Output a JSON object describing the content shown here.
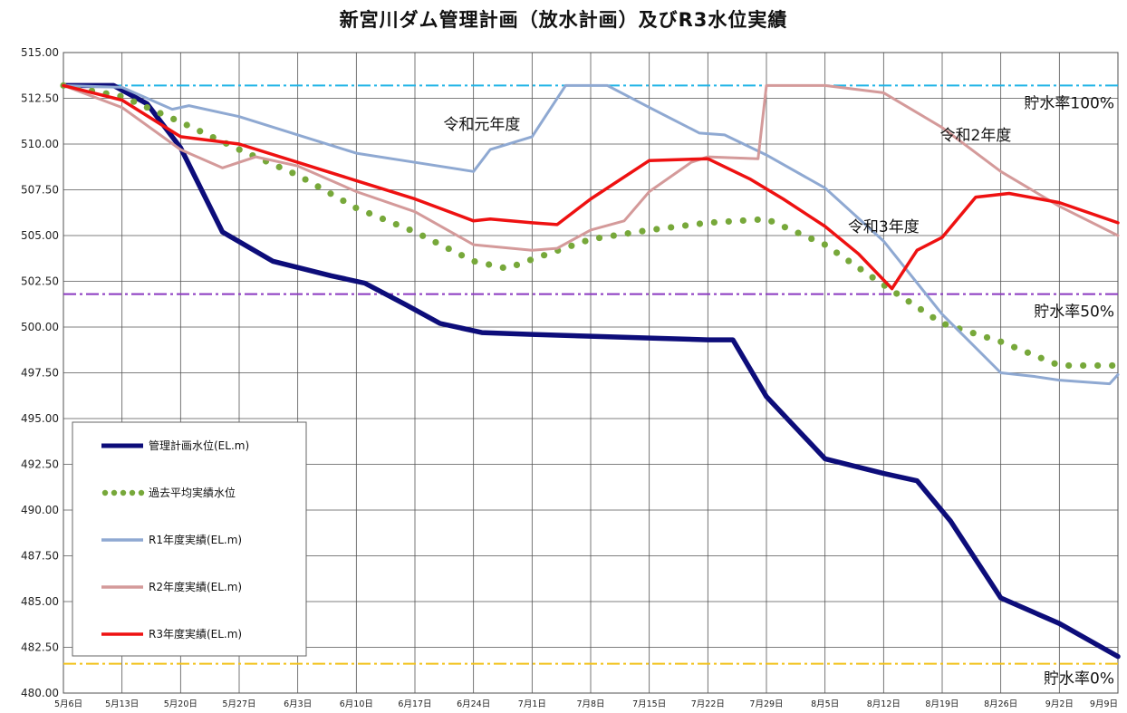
{
  "chart_data": {
    "type": "line",
    "title": "新宮川ダム管理計画（放水計画）及びR3水位実績",
    "xlabel": "",
    "ylabel": "",
    "ylim": [
      480,
      515
    ],
    "y_ticks": [
      "480.00",
      "482.50",
      "485.00",
      "487.50",
      "490.00",
      "492.50",
      "495.00",
      "497.50",
      "500.00",
      "502.50",
      "505.00",
      "507.50",
      "510.00",
      "512.50",
      "515.00"
    ],
    "x_range_dates": [
      "5/6",
      "9/9"
    ],
    "x_ticks": [
      "5月6日",
      "5月13日",
      "5月20日",
      "5月27日",
      "6月3日",
      "6月10日",
      "6月17日",
      "6月24日",
      "7月1日",
      "7月8日",
      "7月15日",
      "7月22日",
      "7月29日",
      "8月5日",
      "8月12日",
      "8月19日",
      "8月26日",
      "9月2日",
      "9月9日"
    ],
    "grid": true,
    "legend_position": "bottom-left",
    "reference_lines": [
      {
        "label": "貯水率100%",
        "value": 513.2,
        "color": "#1fb3e6"
      },
      {
        "label": "貯水率50%",
        "value": 501.8,
        "color": "#8a38c0"
      },
      {
        "label": "貯水率0%",
        "value": 481.6,
        "color": "#f2c21a"
      }
    ],
    "annotations": [
      {
        "text": "令和元年度",
        "date": "6/25",
        "value": 510.8
      },
      {
        "text": "令和2年度",
        "date": "8/23",
        "value": 510.2
      },
      {
        "text": "令和3年度",
        "date": "8/12",
        "value": 505.2
      }
    ],
    "series": [
      {
        "name": "管理計画水位(EL.m)",
        "color": "#0d0d7a",
        "style": "solid",
        "x": [
          "5/6",
          "5/12",
          "5/16",
          "5/20",
          "5/25",
          "5/31",
          "6/7",
          "6/11",
          "6/16",
          "6/20",
          "6/25",
          "7/1",
          "7/8",
          "7/15",
          "7/22",
          "7/25",
          "7/29",
          "8/5",
          "8/12",
          "8/16",
          "8/20",
          "8/26",
          "9/2",
          "9/9"
        ],
        "y": [
          513.2,
          513.2,
          512.2,
          509.8,
          505.2,
          503.6,
          502.8,
          502.4,
          501.2,
          500.2,
          499.7,
          499.6,
          499.5,
          499.4,
          499.3,
          499.3,
          496.2,
          492.8,
          492.0,
          491.6,
          489.4,
          485.2,
          483.8,
          482.0
        ]
      },
      {
        "name": "過去平均実績水位",
        "color": "#77a83a",
        "style": "dotted",
        "x": [
          "5/6",
          "5/13",
          "5/20",
          "5/27",
          "6/3",
          "6/10",
          "6/17",
          "6/24",
          "6/28",
          "7/1",
          "7/8",
          "7/15",
          "7/22",
          "7/29",
          "8/5",
          "8/12",
          "8/19",
          "8/26",
          "9/2",
          "9/9"
        ],
        "y": [
          513.2,
          512.6,
          511.2,
          509.7,
          508.3,
          506.5,
          505.2,
          503.6,
          503.2,
          503.7,
          504.8,
          505.3,
          505.7,
          505.9,
          504.5,
          502.3,
          500.2,
          499.2,
          497.9,
          497.9
        ]
      },
      {
        "name": "R1年度実績(EL.m)",
        "color": "#8fa9d2",
        "style": "solid",
        "x": [
          "5/6",
          "5/13",
          "5/19",
          "5/21",
          "5/27",
          "6/3",
          "6/10",
          "6/17",
          "6/24",
          "6/26",
          "7/1",
          "7/5",
          "7/10",
          "7/15",
          "7/21",
          "7/24",
          "7/29",
          "8/5",
          "8/12",
          "8/19",
          "8/26",
          "8/30",
          "9/2",
          "9/8",
          "9/9"
        ],
        "y": [
          513.2,
          513.1,
          511.9,
          512.1,
          511.5,
          510.5,
          509.5,
          509.0,
          508.5,
          509.7,
          510.4,
          513.2,
          513.2,
          512.0,
          510.6,
          510.5,
          509.4,
          507.6,
          504.7,
          500.7,
          497.5,
          497.3,
          497.1,
          496.9,
          497.4
        ]
      },
      {
        "name": "R2年度実績(EL.m)",
        "color": "#d49a9a",
        "style": "solid",
        "x": [
          "5/6",
          "5/13",
          "5/20",
          "5/25",
          "5/29",
          "6/3",
          "6/10",
          "6/17",
          "6/24",
          "7/1",
          "7/4",
          "7/8",
          "7/12",
          "7/15",
          "7/20",
          "7/22",
          "7/28",
          "7/29",
          "8/5",
          "8/12",
          "8/19",
          "8/26",
          "9/2",
          "9/9"
        ],
        "y": [
          513.2,
          512.0,
          509.7,
          508.7,
          509.3,
          508.8,
          507.4,
          506.3,
          504.5,
          504.2,
          504.3,
          505.3,
          505.8,
          507.4,
          509.0,
          509.3,
          509.2,
          513.2,
          513.2,
          512.8,
          510.9,
          508.5,
          506.6,
          505.0
        ]
      },
      {
        "name": "R3年度実績(EL.m)",
        "color": "#ee1111",
        "style": "solid",
        "x": [
          "5/6",
          "5/13",
          "5/20",
          "5/27",
          "6/3",
          "6/10",
          "6/17",
          "6/24",
          "6/26",
          "7/1",
          "7/4",
          "7/8",
          "7/15",
          "7/22",
          "7/27",
          "7/31",
          "8/5",
          "8/9",
          "8/13",
          "8/16",
          "8/19",
          "8/23",
          "8/27",
          "9/2",
          "9/9"
        ],
        "y": [
          513.2,
          512.4,
          510.4,
          510.0,
          509.0,
          508.0,
          507.0,
          505.8,
          505.9,
          505.7,
          505.6,
          507.0,
          509.1,
          509.2,
          508.1,
          507.0,
          505.5,
          504.0,
          502.1,
          504.2,
          504.9,
          507.1,
          507.3,
          506.8,
          505.7
        ]
      }
    ]
  }
}
